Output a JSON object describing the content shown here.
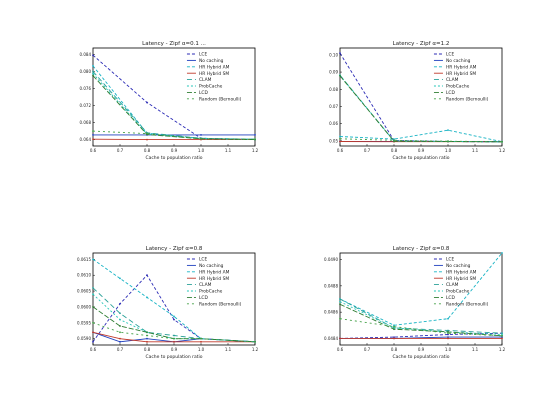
{
  "colors": {
    "LCE": "#2b2bb5",
    "No caching": "#1f3fbf",
    "HR Hybrid AM": "#17b3c4",
    "HR Hybrid SM": "#c0392b",
    "CLAM": "#2aa198",
    "ProbCache": "#26c6b8",
    "LCD": "#2e7d32",
    "Random (Bernoulli)": "#43a047"
  },
  "chart_data": [
    {
      "type": "line",
      "title": "Latency - Zipf α=0.1 ... ",
      "xlabel": "Cache to population ratio",
      "ylabel": "",
      "x": [
        0.6,
        0.7,
        0.8,
        0.9,
        1.0,
        1.1,
        1.2
      ],
      "x_ticks": [
        "0.6",
        "0.7",
        "0.8",
        "0.9",
        "1.0",
        "1.1",
        "1.2"
      ],
      "y_ticks": [
        "0.064",
        "0.068",
        "0.072",
        "0.076",
        "0.080",
        "0.084"
      ],
      "ylim": [
        0.0625,
        0.0855
      ],
      "legend_position": "upper-right",
      "series": [
        {
          "name": "LCE",
          "dash": "3,2",
          "values": [
            0.0838,
            null,
            0.0727,
            null,
            0.0643,
            null,
            0.064
          ]
        },
        {
          "name": "No caching",
          "dash": "none",
          "values": [
            0.0651,
            null,
            0.0651,
            null,
            0.0651,
            null,
            0.0651
          ]
        },
        {
          "name": "HR Hybrid AM",
          "dash": "3,2",
          "values": [
            0.0813,
            null,
            0.0655,
            null,
            0.0643,
            null,
            0.0641
          ]
        },
        {
          "name": "HR Hybrid SM",
          "dash": "none",
          "values": [
            0.0641,
            null,
            0.064,
            null,
            0.064,
            null,
            0.064
          ]
        },
        {
          "name": "CLAM",
          "dash": "5,3",
          "values": [
            0.08,
            null,
            0.0656,
            null,
            0.0643,
            null,
            0.0641
          ]
        },
        {
          "name": "ProbCache",
          "dash": "2,2",
          "values": [
            0.0795,
            null,
            0.0653,
            null,
            0.0642,
            null,
            0.064
          ]
        },
        {
          "name": "LCD",
          "dash": "5,2",
          "values": [
            0.079,
            null,
            0.0652,
            null,
            0.0642,
            null,
            0.064
          ]
        },
        {
          "name": "Random (Bernoulli)",
          "dash": "2,3",
          "values": [
            0.066,
            null,
            0.0654,
            null,
            0.0642,
            null,
            0.0641
          ]
        }
      ]
    },
    {
      "type": "line",
      "title": "Latency - Zipf α=1.2",
      "xlabel": "Cache to population ratio",
      "ylabel": "",
      "x": [
        0.6,
        0.7,
        0.8,
        0.9,
        1.0,
        1.1,
        1.2
      ],
      "x_ticks": [
        "0.6",
        "0.7",
        "0.8",
        "0.9",
        "1.0",
        "1.1",
        "1.2"
      ],
      "y_ticks": [
        "0.05",
        "0.06",
        "0.07",
        "0.08",
        "0.09",
        "0.10"
      ],
      "ylim": [
        0.047,
        0.104
      ],
      "legend_position": "upper-right",
      "series": [
        {
          "name": "LCE",
          "dash": "3,2",
          "values": [
            0.101,
            null,
            0.0502,
            null,
            0.0496,
            null,
            0.0494
          ]
        },
        {
          "name": "No caching",
          "dash": "none",
          "values": [
            0.0497,
            null,
            0.0497,
            null,
            0.0497,
            null,
            0.0497
          ]
        },
        {
          "name": "HR Hybrid AM",
          "dash": "3,2",
          "values": [
            0.0525,
            null,
            0.051,
            null,
            0.0562,
            null,
            0.0495
          ]
        },
        {
          "name": "HR Hybrid SM",
          "dash": "none",
          "values": [
            0.0496,
            null,
            0.0495,
            null,
            0.0495,
            null,
            0.0495
          ]
        },
        {
          "name": "CLAM",
          "dash": "5,3",
          "values": [
            0.0882,
            null,
            0.0498,
            null,
            0.0497,
            null,
            0.0495
          ]
        },
        {
          "name": "ProbCache",
          "dash": "2,2",
          "values": [
            0.088,
            null,
            0.0499,
            null,
            0.0496,
            null,
            0.0494
          ]
        },
        {
          "name": "LCD",
          "dash": "5,2",
          "values": [
            0.0878,
            null,
            0.0498,
            null,
            0.0496,
            null,
            0.0494
          ]
        },
        {
          "name": "Random (Bernoulli)",
          "dash": "2,3",
          "values": [
            0.0512,
            null,
            0.0503,
            null,
            0.0498,
            null,
            0.0495
          ]
        }
      ]
    },
    {
      "type": "line",
      "title": "Latency - Zipf α=0.8",
      "xlabel": "Cache to population ratio",
      "ylabel": "",
      "x": [
        0.6,
        0.7,
        0.8,
        0.9,
        1.0,
        1.1,
        1.2
      ],
      "x_ticks": [
        "0.6",
        "0.7",
        "0.8",
        "0.9",
        "1.0",
        "1.1",
        "1.2"
      ],
      "y_ticks": [
        "0.0590",
        "0.0595",
        "0.0600",
        "0.0605",
        "0.0610",
        "0.0615"
      ],
      "ylim": [
        0.0588,
        0.0617
      ],
      "legend_position": "upper-right",
      "series": [
        {
          "name": "LCE",
          "dash": "3,2",
          "values": [
            0.0589,
            0.0601,
            0.061,
            0.0596,
            0.059,
            null,
            0.0589
          ]
        },
        {
          "name": "No caching",
          "dash": "none",
          "values": [
            0.0592,
            0.0589,
            0.059,
            0.0589,
            0.059,
            null,
            0.0589
          ]
        },
        {
          "name": "HR Hybrid AM",
          "dash": "3,2",
          "values": [
            0.0615,
            0.0609,
            0.0603,
            0.0597,
            0.059,
            null,
            0.0589
          ]
        },
        {
          "name": "HR Hybrid SM",
          "dash": "none",
          "values": [
            0.0592,
            0.059,
            0.0589,
            0.0589,
            0.0589,
            null,
            0.0589
          ]
        },
        {
          "name": "CLAM",
          "dash": "5,3",
          "values": [
            0.0606,
            0.0598,
            0.0592,
            0.0591,
            0.059,
            null,
            0.0589
          ]
        },
        {
          "name": "ProbCache",
          "dash": "2,2",
          "values": [
            0.0604,
            0.0596,
            0.0592,
            0.059,
            0.059,
            null,
            0.0589
          ]
        },
        {
          "name": "LCD",
          "dash": "5,2",
          "values": [
            0.06,
            0.0594,
            0.0592,
            0.059,
            0.059,
            null,
            0.0589
          ]
        },
        {
          "name": "Random (Bernoulli)",
          "dash": "2,3",
          "values": [
            0.0595,
            0.0592,
            0.0591,
            0.059,
            0.059,
            null,
            0.0589
          ]
        }
      ]
    },
    {
      "type": "line",
      "title": "Latency - Zipf α=0.8",
      "xlabel": "Cache to population ratio",
      "ylabel": "",
      "x": [
        0.6,
        0.7,
        0.8,
        0.9,
        1.0,
        1.1,
        1.2
      ],
      "x_ticks": [
        "0.6",
        "0.7",
        "0.8",
        "0.9",
        "1.0",
        "1.1",
        "1.2"
      ],
      "y_ticks": [
        "0.0484",
        "0.0486",
        "0.0488",
        "0.0490"
      ],
      "ylim": [
        0.04835,
        0.04905
      ],
      "legend_position": "upper-right",
      "series": [
        {
          "name": "LCE",
          "dash": "3,2",
          "values": [
            0.0484,
            null,
            0.04841,
            null,
            0.04843,
            null,
            0.04844
          ]
        },
        {
          "name": "No caching",
          "dash": "none",
          "values": [
            0.0484,
            null,
            0.0484,
            null,
            0.04841,
            null,
            0.04841
          ]
        },
        {
          "name": "HR Hybrid AM",
          "dash": "3,2",
          "values": [
            0.0487,
            null,
            0.0485,
            null,
            0.04855,
            null,
            0.04905
          ]
        },
        {
          "name": "HR Hybrid SM",
          "dash": "none",
          "values": [
            0.0484,
            null,
            0.0484,
            null,
            0.0484,
            null,
            0.0484
          ]
        },
        {
          "name": "CLAM",
          "dash": "5,3",
          "values": [
            0.0487,
            null,
            0.04848,
            null,
            0.04846,
            null,
            0.04844
          ]
        },
        {
          "name": "ProbCache",
          "dash": "2,2",
          "values": [
            0.04868,
            null,
            0.04848,
            null,
            0.04845,
            null,
            0.04843
          ]
        },
        {
          "name": "LCD",
          "dash": "5,2",
          "values": [
            0.04866,
            null,
            0.04847,
            null,
            0.04845,
            null,
            0.04842
          ]
        },
        {
          "name": "Random (Bernoulli)",
          "dash": "2,3",
          "values": [
            0.04855,
            null,
            0.04849,
            null,
            0.04844,
            null,
            0.04842
          ]
        }
      ]
    }
  ]
}
